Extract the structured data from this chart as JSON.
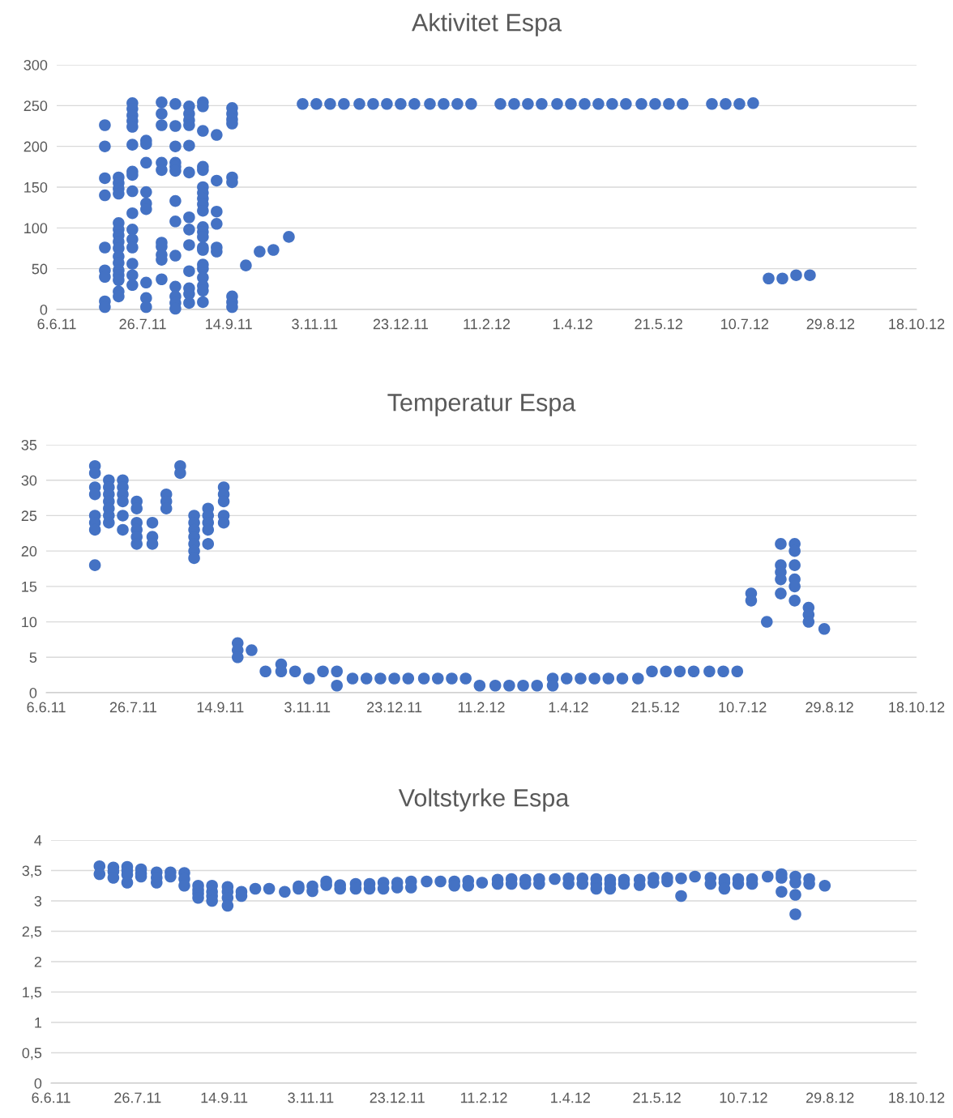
{
  "chart_data": [
    {
      "type": "scatter",
      "title": "Aktivitet Espa",
      "marker": "circle",
      "grid": "y",
      "xlim": [
        "2011-06-06",
        "2012-10-18"
      ],
      "xticks": [
        {
          "value": "2011-06-06",
          "label": "6.6.11"
        },
        {
          "value": "2011-07-26",
          "label": "26.7.11"
        },
        {
          "value": "2011-09-14",
          "label": "14.9.11"
        },
        {
          "value": "2011-11-03",
          "label": "3.11.11"
        },
        {
          "value": "2011-12-23",
          "label": "23.12.11"
        },
        {
          "value": "2012-02-11",
          "label": "11.2.12"
        },
        {
          "value": "2012-04-01",
          "label": "1.4.12"
        },
        {
          "value": "2012-05-21",
          "label": "21.5.12"
        },
        {
          "value": "2012-07-10",
          "label": "10.7.12"
        },
        {
          "value": "2012-08-29",
          "label": "29.8.12"
        },
        {
          "value": "2012-10-18",
          "label": "18.10.12"
        }
      ],
      "ylim": [
        0,
        300
      ],
      "yticks": [
        0,
        50,
        100,
        150,
        200,
        250,
        300
      ],
      "series": [
        {
          "color": "#4472c4",
          "x": [
            "2011-07-04",
            "2011-07-04",
            "2011-07-04",
            "2011-07-04",
            "2011-07-04",
            "2011-07-04",
            "2011-07-04",
            "2011-07-04",
            "2011-07-04",
            "2011-07-12",
            "2011-07-12",
            "2011-07-12",
            "2011-07-12",
            "2011-07-12",
            "2011-07-12",
            "2011-07-12",
            "2011-07-12",
            "2011-07-12",
            "2011-07-12",
            "2011-07-12",
            "2011-07-12",
            "2011-07-12",
            "2011-07-12",
            "2011-07-12",
            "2011-07-12",
            "2011-07-20",
            "2011-07-20",
            "2011-07-20",
            "2011-07-20",
            "2011-07-20",
            "2011-07-20",
            "2011-07-20",
            "2011-07-20",
            "2011-07-20",
            "2011-07-20",
            "2011-07-20",
            "2011-07-20",
            "2011-07-20",
            "2011-07-20",
            "2011-07-20",
            "2011-07-20",
            "2011-07-28",
            "2011-07-28",
            "2011-07-28",
            "2011-07-28",
            "2011-07-28",
            "2011-07-28",
            "2011-07-28",
            "2011-07-28",
            "2011-07-28",
            "2011-08-06",
            "2011-08-06",
            "2011-08-06",
            "2011-08-06",
            "2011-08-06",
            "2011-08-06",
            "2011-08-06",
            "2011-08-06",
            "2011-08-06",
            "2011-08-06",
            "2011-08-14",
            "2011-08-14",
            "2011-08-14",
            "2011-08-14",
            "2011-08-14",
            "2011-08-14",
            "2011-08-14",
            "2011-08-14",
            "2011-08-14",
            "2011-08-14",
            "2011-08-14",
            "2011-08-14",
            "2011-08-14",
            "2011-08-22",
            "2011-08-22",
            "2011-08-22",
            "2011-08-22",
            "2011-08-22",
            "2011-08-22",
            "2011-08-22",
            "2011-08-22",
            "2011-08-22",
            "2011-08-22",
            "2011-08-22",
            "2011-08-22",
            "2011-08-22",
            "2011-08-30",
            "2011-08-30",
            "2011-08-30",
            "2011-08-30",
            "2011-08-30",
            "2011-08-30",
            "2011-08-30",
            "2011-08-30",
            "2011-08-30",
            "2011-08-30",
            "2011-08-30",
            "2011-08-30",
            "2011-08-30",
            "2011-08-30",
            "2011-08-30",
            "2011-08-30",
            "2011-08-30",
            "2011-08-30",
            "2011-08-30",
            "2011-08-30",
            "2011-08-30",
            "2011-09-07",
            "2011-09-07",
            "2011-09-07",
            "2011-09-07",
            "2011-09-07",
            "2011-09-07",
            "2011-09-16",
            "2011-09-16",
            "2011-09-16",
            "2011-09-16",
            "2011-09-16",
            "2011-09-16",
            "2011-09-16",
            "2011-09-16",
            "2011-09-16",
            "2011-09-24",
            "2011-10-02",
            "2011-10-10",
            "2011-10-19",
            "2011-10-27",
            "2011-11-04",
            "2011-11-12",
            "2011-11-20",
            "2011-11-29",
            "2011-12-07",
            "2011-12-15",
            "2011-12-23",
            "2011-12-31",
            "2012-01-09",
            "2012-01-17",
            "2012-01-25",
            "2012-02-02",
            "2012-02-19",
            "2012-02-27",
            "2012-03-06",
            "2012-03-14",
            "2012-03-23",
            "2012-03-31",
            "2012-04-08",
            "2012-04-16",
            "2012-04-24",
            "2012-05-02",
            "2012-05-11",
            "2012-05-19",
            "2012-05-27",
            "2012-06-04",
            "2012-06-21",
            "2012-06-29",
            "2012-07-07",
            "2012-07-15",
            "2012-07-24",
            "2012-08-01",
            "2012-08-09",
            "2012-08-17"
          ],
          "values": [
            226,
            200,
            161,
            140,
            76,
            48,
            40,
            10,
            3,
            162,
            155,
            148,
            142,
            106,
            98,
            91,
            83,
            75,
            65,
            57,
            48,
            42,
            36,
            22,
            16,
            253,
            246,
            238,
            231,
            224,
            202,
            169,
            165,
            145,
            118,
            98,
            86,
            76,
            56,
            42,
            30,
            207,
            203,
            180,
            144,
            130,
            123,
            33,
            14,
            3,
            254,
            240,
            226,
            180,
            171,
            82,
            77,
            67,
            61,
            37,
            252,
            225,
            200,
            180,
            175,
            170,
            133,
            108,
            66,
            28,
            16,
            8,
            1,
            249,
            240,
            232,
            226,
            201,
            168,
            113,
            98,
            79,
            47,
            26,
            19,
            8,
            254,
            249,
            219,
            175,
            171,
            150,
            143,
            136,
            129,
            121,
            101,
            95,
            89,
            76,
            73,
            55,
            50,
            39,
            29,
            23,
            9,
            214,
            158,
            120,
            105,
            76,
            71,
            247,
            240,
            233,
            228,
            162,
            156,
            16,
            9,
            3,
            54,
            71,
            73,
            89,
            252,
            252,
            252,
            252,
            252,
            252,
            252,
            252,
            252,
            252,
            252,
            252,
            252,
            252,
            252,
            252,
            252,
            252,
            252,
            252,
            252,
            252,
            252,
            252,
            252,
            252,
            252,
            252,
            252,
            252,
            253,
            38,
            38,
            42,
            42
          ]
        }
      ]
    },
    {
      "type": "scatter",
      "title": "Temperatur Espa",
      "marker": "circle",
      "grid": "y",
      "xlim": [
        "2011-06-06",
        "2012-10-18"
      ],
      "xticks": [
        {
          "value": "2011-06-06",
          "label": "6.6.11"
        },
        {
          "value": "2011-07-26",
          "label": "26.7.11"
        },
        {
          "value": "2011-09-14",
          "label": "14.9.11"
        },
        {
          "value": "2011-11-03",
          "label": "3.11.11"
        },
        {
          "value": "2011-12-23",
          "label": "23.12.11"
        },
        {
          "value": "2012-02-11",
          "label": "11.2.12"
        },
        {
          "value": "2012-04-01",
          "label": "1.4.12"
        },
        {
          "value": "2012-05-21",
          "label": "21.5.12"
        },
        {
          "value": "2012-07-10",
          "label": "10.7.12"
        },
        {
          "value": "2012-08-29",
          "label": "29.8.12"
        },
        {
          "value": "2012-10-18",
          "label": "18.10.12"
        }
      ],
      "ylim": [
        0,
        35
      ],
      "yticks": [
        0,
        5,
        10,
        15,
        20,
        25,
        30,
        35
      ],
      "series": [
        {
          "color": "#4472c4",
          "x": [
            "2011-07-04",
            "2011-07-04",
            "2011-07-04",
            "2011-07-04",
            "2011-07-04",
            "2011-07-04",
            "2011-07-04",
            "2011-07-04",
            "2011-07-12",
            "2011-07-12",
            "2011-07-12",
            "2011-07-12",
            "2011-07-12",
            "2011-07-12",
            "2011-07-12",
            "2011-07-20",
            "2011-07-20",
            "2011-07-20",
            "2011-07-20",
            "2011-07-20",
            "2011-07-20",
            "2011-07-28",
            "2011-07-28",
            "2011-07-28",
            "2011-07-28",
            "2011-07-28",
            "2011-07-28",
            "2011-08-06",
            "2011-08-06",
            "2011-08-06",
            "2011-08-14",
            "2011-08-14",
            "2011-08-14",
            "2011-08-22",
            "2011-08-22",
            "2011-08-30",
            "2011-08-30",
            "2011-08-30",
            "2011-08-30",
            "2011-08-30",
            "2011-08-30",
            "2011-08-30",
            "2011-09-07",
            "2011-09-07",
            "2011-09-07",
            "2011-09-07",
            "2011-09-07",
            "2011-09-16",
            "2011-09-16",
            "2011-09-16",
            "2011-09-16",
            "2011-09-16",
            "2011-09-24",
            "2011-09-24",
            "2011-09-24",
            "2011-10-02",
            "2011-10-10",
            "2011-10-19",
            "2011-10-19",
            "2011-10-27",
            "2011-11-04",
            "2011-11-12",
            "2011-11-20",
            "2011-11-20",
            "2011-11-29",
            "2011-12-07",
            "2011-12-15",
            "2011-12-23",
            "2011-12-31",
            "2012-01-09",
            "2012-01-17",
            "2012-01-25",
            "2012-02-02",
            "2012-02-10",
            "2012-02-19",
            "2012-02-27",
            "2012-03-06",
            "2012-03-14",
            "2012-03-23",
            "2012-03-23",
            "2012-03-31",
            "2012-04-08",
            "2012-04-16",
            "2012-04-24",
            "2012-05-02",
            "2012-05-11",
            "2012-05-19",
            "2012-05-27",
            "2012-06-04",
            "2012-06-12",
            "2012-06-21",
            "2012-06-29",
            "2012-07-07",
            "2012-07-15",
            "2012-07-15",
            "2012-07-24",
            "2012-08-01",
            "2012-08-01",
            "2012-08-01",
            "2012-08-01",
            "2012-08-01",
            "2012-08-09",
            "2012-08-09",
            "2012-08-09",
            "2012-08-09",
            "2012-08-09",
            "2012-08-09",
            "2012-08-17",
            "2012-08-17",
            "2012-08-17",
            "2012-08-26"
          ],
          "values": [
            32,
            31,
            29,
            28,
            25,
            24,
            23,
            18,
            30,
            29,
            28,
            27,
            26,
            25,
            24,
            30,
            29,
            28,
            27,
            25,
            23,
            27,
            26,
            24,
            23,
            22,
            21,
            24,
            22,
            21,
            28,
            27,
            26,
            32,
            31,
            25,
            24,
            23,
            22,
            21,
            20,
            19,
            26,
            25,
            24,
            23,
            21,
            29,
            28,
            27,
            25,
            24,
            7,
            6,
            5,
            6,
            3,
            4,
            3,
            3,
            2,
            3,
            3,
            1,
            2,
            2,
            2,
            2,
            2,
            2,
            2,
            2,
            2,
            1,
            1,
            1,
            1,
            1,
            2,
            1,
            2,
            2,
            2,
            2,
            2,
            2,
            3,
            3,
            3,
            3,
            3,
            3,
            3,
            14,
            13,
            10,
            21,
            18,
            17,
            16,
            14,
            21,
            20,
            18,
            16,
            15,
            13,
            12,
            11,
            10,
            9
          ]
        }
      ]
    },
    {
      "type": "scatter",
      "title": "Voltstyrke Espa",
      "marker": "circle",
      "grid": "y",
      "xlim": [
        "2011-06-06",
        "2012-10-18"
      ],
      "xticks": [
        {
          "value": "2011-06-06",
          "label": "6.6.11"
        },
        {
          "value": "2011-07-26",
          "label": "26.7.11"
        },
        {
          "value": "2011-09-14",
          "label": "14.9.11"
        },
        {
          "value": "2011-11-03",
          "label": "3.11.11"
        },
        {
          "value": "2011-12-23",
          "label": "23.12.11"
        },
        {
          "value": "2012-02-11",
          "label": "11.2.12"
        },
        {
          "value": "2012-04-01",
          "label": "1.4.12"
        },
        {
          "value": "2012-05-21",
          "label": "21.5.12"
        },
        {
          "value": "2012-07-10",
          "label": "10.7.12"
        },
        {
          "value": "2012-08-29",
          "label": "29.8.12"
        },
        {
          "value": "2012-10-18",
          "label": "18.10.12"
        }
      ],
      "ylim": [
        0,
        4
      ],
      "yticks": [
        0,
        {
          "value": 0.5,
          "label": "0,5"
        },
        1,
        {
          "value": 1.5,
          "label": "1,5"
        },
        2,
        {
          "value": 2.5,
          "label": "2,5"
        },
        3,
        {
          "value": 3.5,
          "label": "3,5"
        },
        4
      ],
      "series": [
        {
          "color": "#4472c4",
          "x": [
            "2011-07-04",
            "2011-07-04",
            "2011-07-12",
            "2011-07-12",
            "2011-07-12",
            "2011-07-20",
            "2011-07-20",
            "2011-07-20",
            "2011-07-20",
            "2011-07-28",
            "2011-07-28",
            "2011-07-28",
            "2011-08-06",
            "2011-08-06",
            "2011-08-06",
            "2011-08-14",
            "2011-08-14",
            "2011-08-22",
            "2011-08-22",
            "2011-08-22",
            "2011-08-30",
            "2011-08-30",
            "2011-08-30",
            "2011-08-30",
            "2011-09-07",
            "2011-09-07",
            "2011-09-07",
            "2011-09-07",
            "2011-09-16",
            "2011-09-16",
            "2011-09-16",
            "2011-09-16",
            "2011-09-24",
            "2011-09-24",
            "2011-10-02",
            "2011-10-10",
            "2011-10-19",
            "2011-10-27",
            "2011-10-27",
            "2011-11-04",
            "2011-11-04",
            "2011-11-12",
            "2011-11-12",
            "2011-11-20",
            "2011-11-20",
            "2011-11-29",
            "2011-11-29",
            "2011-12-07",
            "2011-12-07",
            "2011-12-15",
            "2011-12-15",
            "2011-12-23",
            "2011-12-23",
            "2011-12-31",
            "2011-12-31",
            "2012-01-09",
            "2012-01-17",
            "2012-01-25",
            "2012-01-25",
            "2012-02-02",
            "2012-02-02",
            "2012-02-10",
            "2012-02-19",
            "2012-02-19",
            "2012-02-27",
            "2012-02-27",
            "2012-03-06",
            "2012-03-06",
            "2012-03-14",
            "2012-03-14",
            "2012-03-23",
            "2012-03-31",
            "2012-03-31",
            "2012-04-08",
            "2012-04-08",
            "2012-04-16",
            "2012-04-16",
            "2012-04-16",
            "2012-04-24",
            "2012-04-24",
            "2012-04-24",
            "2012-05-02",
            "2012-05-02",
            "2012-05-11",
            "2012-05-11",
            "2012-05-19",
            "2012-05-19",
            "2012-05-27",
            "2012-05-27",
            "2012-06-04",
            "2012-06-04",
            "2012-06-12",
            "2012-06-21",
            "2012-06-21",
            "2012-06-29",
            "2012-06-29",
            "2012-06-29",
            "2012-07-07",
            "2012-07-07",
            "2012-07-15",
            "2012-07-15",
            "2012-07-24",
            "2012-08-01",
            "2012-08-01",
            "2012-08-01",
            "2012-08-09",
            "2012-08-09",
            "2012-08-09",
            "2012-08-09",
            "2012-08-17",
            "2012-08-17",
            "2012-08-26"
          ],
          "values": [
            3.57,
            3.44,
            3.55,
            3.48,
            3.38,
            3.56,
            3.5,
            3.43,
            3.3,
            3.52,
            3.45,
            3.4,
            3.47,
            3.38,
            3.3,
            3.47,
            3.4,
            3.46,
            3.36,
            3.25,
            3.25,
            3.18,
            3.12,
            3.05,
            3.25,
            3.15,
            3.08,
            3.0,
            3.23,
            3.15,
            3.05,
            2.92,
            3.15,
            3.08,
            3.2,
            3.2,
            3.15,
            3.24,
            3.2,
            3.24,
            3.16,
            3.32,
            3.26,
            3.26,
            3.2,
            3.28,
            3.2,
            3.28,
            3.2,
            3.3,
            3.2,
            3.3,
            3.22,
            3.32,
            3.22,
            3.32,
            3.32,
            3.32,
            3.25,
            3.33,
            3.25,
            3.3,
            3.35,
            3.28,
            3.36,
            3.28,
            3.35,
            3.28,
            3.36,
            3.28,
            3.36,
            3.37,
            3.28,
            3.37,
            3.28,
            3.36,
            3.28,
            3.2,
            3.35,
            3.28,
            3.2,
            3.35,
            3.28,
            3.35,
            3.26,
            3.38,
            3.3,
            3.38,
            3.32,
            3.37,
            3.08,
            3.4,
            3.38,
            3.28,
            3.36,
            3.3,
            3.2,
            3.36,
            3.28,
            3.36,
            3.28,
            3.4,
            3.44,
            3.38,
            3.15,
            3.4,
            3.3,
            3.1,
            2.78,
            3.36,
            3.28,
            3.25
          ]
        }
      ]
    }
  ]
}
